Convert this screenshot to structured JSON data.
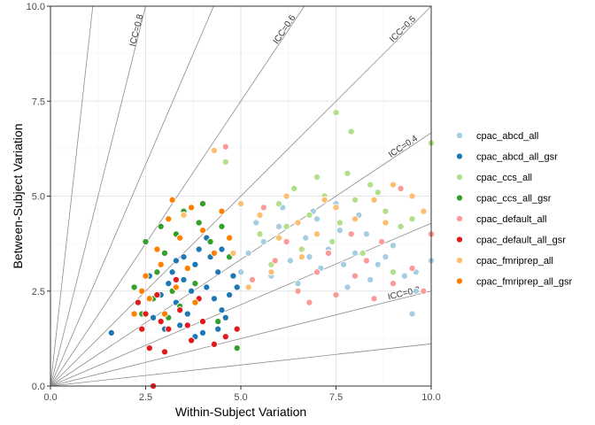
{
  "chart_data": {
    "type": "scatter",
    "xlabel": "Within-Subject Variation",
    "ylabel": "Between-Subject Variation",
    "xlim": [
      0,
      10
    ],
    "ylim": [
      0,
      10
    ],
    "x_ticks": [
      0,
      2.5,
      5,
      7.5,
      10
    ],
    "y_ticks": [
      0,
      2.5,
      5,
      7.5,
      10
    ],
    "x_tick_labels": [
      "0.0",
      "2.5",
      "5.0",
      "7.5",
      "10.0"
    ],
    "y_tick_labels": [
      "0.0",
      "2.5",
      "5.0",
      "7.5",
      "10.0"
    ],
    "grid": true,
    "legend_position": "right",
    "icc_lines": [
      {
        "icc": 0.1,
        "label": ""
      },
      {
        "icc": 0.2,
        "label": "ICC=0.2"
      },
      {
        "icc": 0.3,
        "label": ""
      },
      {
        "icc": 0.4,
        "label": "ICC=0.4"
      },
      {
        "icc": 0.5,
        "label": "ICC=0.5"
      },
      {
        "icc": 0.6,
        "label": "ICC=0.6"
      },
      {
        "icc": 0.7,
        "label": ""
      },
      {
        "icc": 0.8,
        "label": "ICC=0.8"
      },
      {
        "icc": 0.9,
        "label": ""
      }
    ],
    "series": [
      {
        "name": "cpac_abcd_all",
        "color": "#a6cee3",
        "points": [
          [
            5.2,
            3.5
          ],
          [
            5.6,
            3.8
          ],
          [
            6.0,
            4.2
          ],
          [
            6.3,
            3.3
          ],
          [
            6.7,
            3.9
          ],
          [
            7.0,
            4.4
          ],
          [
            7.3,
            3.6
          ],
          [
            7.6,
            4.1
          ],
          [
            8.0,
            3.5
          ],
          [
            8.3,
            4.0
          ],
          [
            8.6,
            3.2
          ],
          [
            9.0,
            3.7
          ],
          [
            9.3,
            2.9
          ],
          [
            9.6,
            2.5
          ],
          [
            5.8,
            2.9
          ],
          [
            6.5,
            2.7
          ],
          [
            7.1,
            3.1
          ],
          [
            7.8,
            2.6
          ],
          [
            8.4,
            2.8
          ],
          [
            6.1,
            4.7
          ],
          [
            6.9,
            4.6
          ],
          [
            7.5,
            4.8
          ],
          [
            8.1,
            4.5
          ],
          [
            5.4,
            4.3
          ],
          [
            5.0,
            3.0
          ],
          [
            6.8,
            3.4
          ],
          [
            7.7,
            3.2
          ],
          [
            8.8,
            3.4
          ],
          [
            9.5,
            1.9
          ],
          [
            9.6,
            3.0
          ],
          [
            10.0,
            3.3
          ]
        ]
      },
      {
        "name": "cpac_abcd_all_gsr",
        "color": "#1f78b4",
        "points": [
          [
            3.5,
            2.8
          ],
          [
            3.8,
            3.2
          ],
          [
            4.1,
            2.6
          ],
          [
            4.4,
            3.0
          ],
          [
            4.7,
            2.4
          ],
          [
            3.3,
            2.2
          ],
          [
            3.6,
            1.9
          ],
          [
            3.9,
            3.6
          ],
          [
            4.2,
            3.4
          ],
          [
            4.5,
            2.0
          ],
          [
            4.8,
            2.9
          ],
          [
            3.2,
            3.0
          ],
          [
            3.4,
            1.6
          ],
          [
            4.0,
            1.4
          ],
          [
            4.6,
            1.8
          ],
          [
            3.7,
            2.5
          ],
          [
            4.3,
            2.3
          ],
          [
            3.1,
            2.7
          ],
          [
            2.9,
            2.4
          ],
          [
            4.9,
            2.6
          ],
          [
            3.0,
            1.5
          ],
          [
            4.5,
            3.6
          ],
          [
            3.8,
            1.3
          ],
          [
            4.1,
            3.9
          ],
          [
            3.5,
            3.4
          ],
          [
            2.7,
            1.8
          ],
          [
            3.3,
            3.3
          ],
          [
            4.4,
            1.5
          ],
          [
            1.6,
            1.4
          ],
          [
            2.6,
            2.9
          ]
        ]
      },
      {
        "name": "cpac_ccs_all",
        "color": "#b2df8a",
        "points": [
          [
            5.5,
            4.0
          ],
          [
            6.0,
            4.8
          ],
          [
            6.4,
            5.2
          ],
          [
            6.8,
            4.5
          ],
          [
            7.2,
            5.0
          ],
          [
            7.6,
            4.3
          ],
          [
            8.0,
            4.9
          ],
          [
            8.4,
            5.3
          ],
          [
            8.8,
            4.6
          ],
          [
            9.2,
            4.2
          ],
          [
            5.8,
            3.2
          ],
          [
            6.6,
            3.6
          ],
          [
            7.4,
            3.8
          ],
          [
            8.2,
            3.5
          ],
          [
            9.0,
            3.0
          ],
          [
            7.5,
            7.2
          ],
          [
            7.9,
            6.7
          ],
          [
            4.6,
            5.9
          ],
          [
            10.0,
            6.4
          ],
          [
            6.2,
            4.2
          ],
          [
            7.0,
            5.5
          ],
          [
            7.8,
            5.6
          ],
          [
            8.6,
            5.1
          ],
          [
            9.5,
            4.4
          ]
        ]
      },
      {
        "name": "cpac_ccs_all_gsr",
        "color": "#33a02c",
        "points": [
          [
            3.0,
            3.5
          ],
          [
            3.3,
            4.0
          ],
          [
            3.6,
            3.1
          ],
          [
            3.9,
            4.3
          ],
          [
            4.2,
            3.8
          ],
          [
            2.8,
            3.0
          ],
          [
            3.2,
            2.5
          ],
          [
            2.5,
            3.8
          ],
          [
            4.5,
            4.2
          ],
          [
            3.5,
            4.6
          ],
          [
            4.7,
            3.4
          ],
          [
            2.7,
            2.3
          ],
          [
            3.1,
            1.8
          ],
          [
            2.9,
            4.2
          ],
          [
            4.0,
            4.8
          ],
          [
            2.2,
            2.6
          ],
          [
            4.4,
            1.7
          ],
          [
            4.9,
            1.0
          ],
          [
            3.4,
            2.1
          ],
          [
            3.8,
            2.7
          ],
          [
            2.4,
            1.9
          ]
        ]
      },
      {
        "name": "cpac_default_all",
        "color": "#fb9a99",
        "points": [
          [
            5.3,
            2.8
          ],
          [
            5.9,
            3.3
          ],
          [
            6.5,
            2.5
          ],
          [
            7.0,
            3.0
          ],
          [
            7.5,
            2.4
          ],
          [
            8.0,
            2.9
          ],
          [
            8.5,
            2.3
          ],
          [
            9.0,
            2.7
          ],
          [
            9.5,
            3.1
          ],
          [
            10.0,
            4.0
          ],
          [
            6.2,
            3.8
          ],
          [
            6.8,
            2.2
          ],
          [
            7.3,
            3.5
          ],
          [
            7.9,
            4.0
          ],
          [
            8.7,
            3.8
          ],
          [
            4.6,
            6.3
          ],
          [
            9.2,
            5.2
          ],
          [
            5.6,
            4.7
          ],
          [
            8.3,
            3.3
          ],
          [
            9.8,
            2.5
          ]
        ]
      },
      {
        "name": "cpac_default_all_gsr",
        "color": "#e31a1c",
        "points": [
          [
            2.5,
            1.9
          ],
          [
            2.8,
            2.4
          ],
          [
            3.1,
            1.5
          ],
          [
            3.4,
            2.0
          ],
          [
            3.7,
            1.2
          ],
          [
            4.0,
            1.7
          ],
          [
            4.3,
            1.1
          ],
          [
            2.6,
            1.0
          ],
          [
            3.0,
            0.9
          ],
          [
            2.3,
            2.2
          ],
          [
            3.6,
            1.6
          ],
          [
            4.6,
            1.3
          ],
          [
            2.9,
            1.7
          ],
          [
            3.9,
            2.3
          ],
          [
            2.7,
            0.0
          ],
          [
            4.9,
            1.5
          ],
          [
            3.3,
            2.8
          ],
          [
            2.4,
            1.5
          ]
        ]
      },
      {
        "name": "cpac_fmriprep_all",
        "color": "#fdbf6f",
        "points": [
          [
            4.3,
            6.2
          ],
          [
            5.0,
            4.8
          ],
          [
            5.5,
            4.5
          ],
          [
            6.0,
            3.9
          ],
          [
            6.5,
            4.3
          ],
          [
            7.0,
            4.0
          ],
          [
            7.5,
            4.7
          ],
          [
            8.0,
            4.4
          ],
          [
            8.5,
            4.9
          ],
          [
            9.0,
            5.3
          ],
          [
            9.5,
            5.0
          ],
          [
            5.2,
            2.6
          ],
          [
            5.8,
            3.0
          ],
          [
            4.8,
            3.5
          ],
          [
            3.5,
            4.5
          ],
          [
            6.2,
            5.0
          ],
          [
            7.2,
            4.9
          ],
          [
            8.8,
            4.3
          ],
          [
            9.8,
            4.6
          ],
          [
            6.6,
            3.4
          ]
        ]
      },
      {
        "name": "cpac_fmriprep_all_gsr",
        "color": "#ff7f00",
        "points": [
          [
            2.5,
            2.9
          ],
          [
            2.8,
            3.6
          ],
          [
            3.1,
            4.4
          ],
          [
            3.4,
            3.9
          ],
          [
            3.7,
            4.7
          ],
          [
            4.0,
            4.1
          ],
          [
            4.3,
            3.5
          ],
          [
            2.6,
            2.3
          ],
          [
            3.0,
            1.9
          ],
          [
            3.3,
            2.6
          ],
          [
            3.6,
            3.1
          ],
          [
            2.2,
            1.9
          ],
          [
            3.2,
            4.9
          ],
          [
            4.5,
            4.6
          ],
          [
            2.9,
            3.2
          ],
          [
            3.8,
            2.2
          ],
          [
            2.4,
            2.5
          ],
          [
            4.7,
            3.9
          ]
        ]
      }
    ]
  }
}
